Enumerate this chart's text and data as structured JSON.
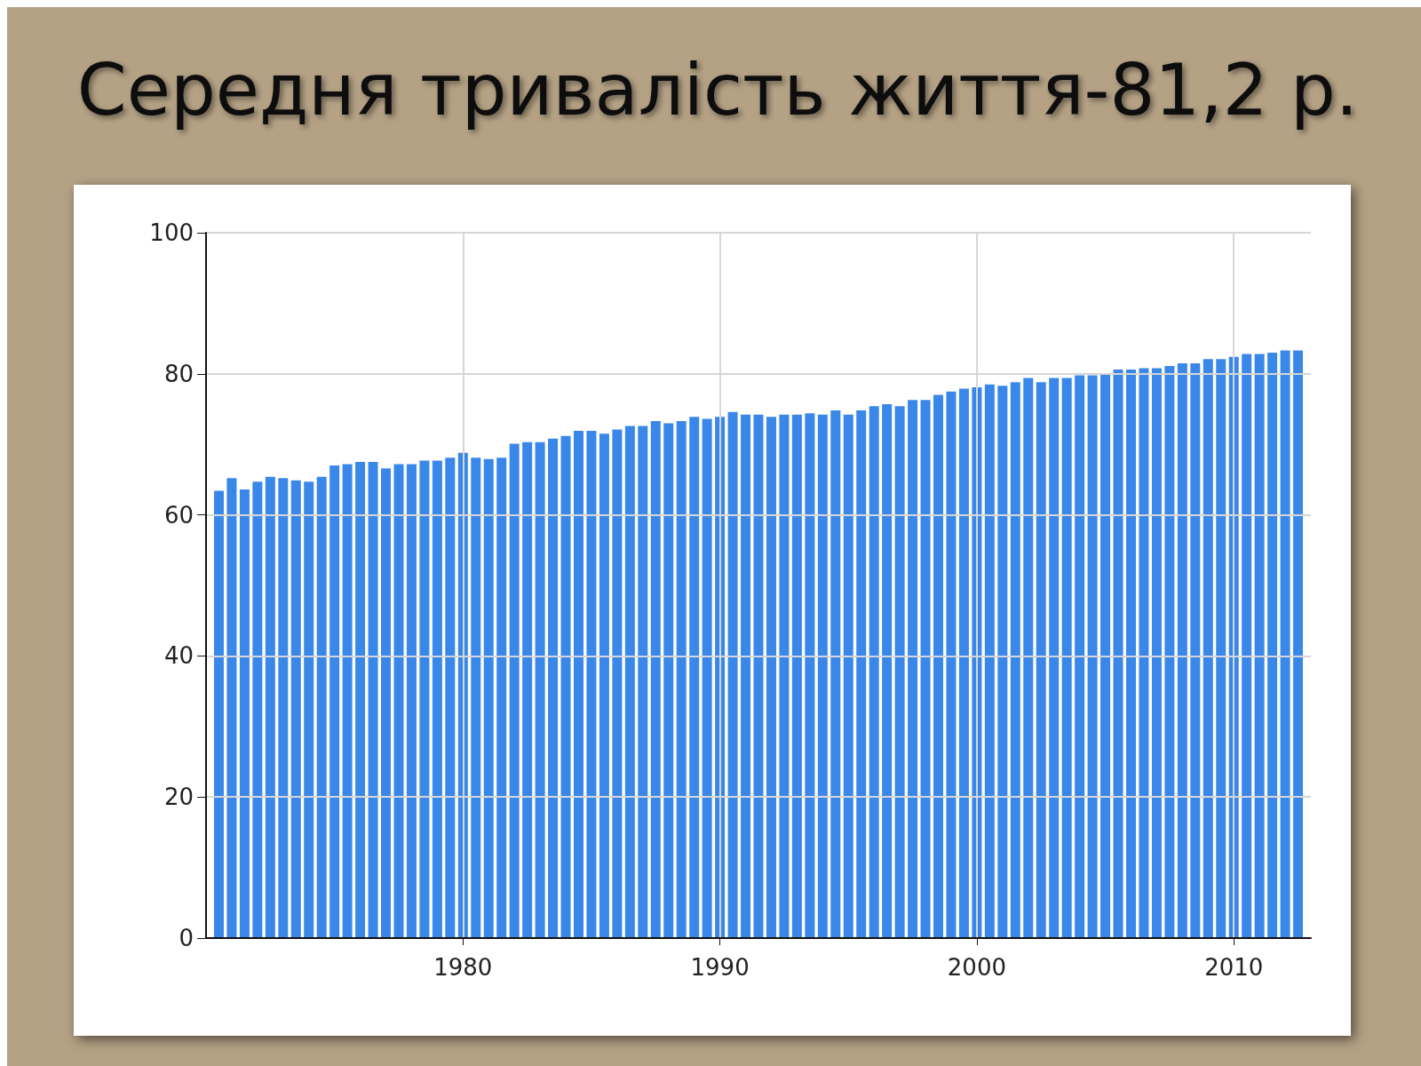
{
  "chart_data": {
    "type": "bar",
    "title": "Середня тривалість життя-81,2 р.",
    "x": [
      1970.5,
      1971,
      1971.5,
      1972,
      1972.5,
      1973,
      1973.5,
      1974,
      1974.5,
      1975,
      1975.5,
      1976,
      1976.5,
      1977,
      1977.5,
      1978,
      1978.5,
      1979,
      1979.5,
      1980,
      1980.5,
      1981,
      1981.5,
      1982,
      1982.5,
      1983,
      1983.5,
      1984,
      1984.5,
      1985,
      1985.5,
      1986,
      1986.5,
      1987,
      1987.5,
      1988,
      1988.5,
      1989,
      1989.5,
      1990,
      1990.5,
      1991,
      1991.5,
      1992,
      1992.5,
      1993,
      1993.5,
      1994,
      1994.5,
      1995,
      1995.5,
      1996,
      1996.5,
      1997,
      1997.5,
      1998,
      1998.5,
      1999,
      1999.5,
      2000,
      2000.5,
      2001,
      2001.5,
      2002,
      2002.5,
      2003,
      2003.5,
      2004,
      2004.5,
      2005,
      2005.5,
      2006,
      2006.5,
      2007,
      2007.5,
      2008,
      2008.5,
      2009,
      2009.5,
      2010,
      2010.5,
      2011,
      2011.5,
      2012,
      2012.5
    ],
    "values": [
      63.4,
      65.2,
      63.6,
      64.7,
      65.4,
      65.2,
      64.9,
      64.7,
      65.4,
      67.0,
      67.2,
      67.5,
      67.5,
      66.6,
      67.2,
      67.2,
      67.7,
      67.7,
      68.1,
      68.8,
      68.1,
      67.9,
      68.1,
      70.1,
      70.3,
      70.3,
      70.8,
      71.2,
      71.9,
      71.9,
      71.5,
      72.1,
      72.6,
      72.6,
      73.3,
      73.0,
      73.3,
      73.9,
      73.6,
      73.9,
      74.6,
      74.2,
      74.2,
      73.9,
      74.2,
      74.2,
      74.4,
      74.2,
      74.8,
      74.2,
      74.8,
      75.4,
      75.7,
      75.4,
      76.3,
      76.3,
      77.0,
      77.5,
      77.9,
      78.1,
      78.5,
      78.3,
      78.8,
      79.4,
      78.8,
      79.4,
      79.4,
      79.8,
      79.8,
      80.1,
      80.6,
      80.6,
      80.8,
      80.8,
      81.1,
      81.5,
      81.5,
      82.1,
      82.1,
      82.4,
      82.8,
      82.8,
      83.0,
      83.3,
      83.3
    ],
    "color": "#3a87ea",
    "xlim": [
      1970,
      2013
    ],
    "xticks": [
      1980,
      1990,
      2000,
      2010
    ],
    "ylim": [
      0,
      100
    ],
    "yticks": [
      0,
      20,
      40,
      60,
      80,
      100
    ],
    "grid": true
  }
}
